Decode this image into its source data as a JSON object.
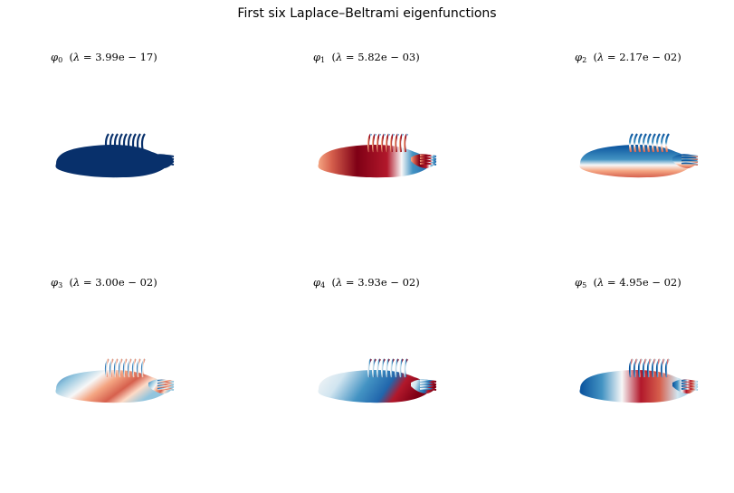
{
  "suptitle": "First six Laplace–Beltrami eigenfunctions",
  "panels": [
    {
      "index": "0",
      "value": "3.99e-17",
      "scheme": "uniform"
    },
    {
      "index": "1",
      "value": "5.82e-03",
      "scheme": "red-blue-lr"
    },
    {
      "index": "2",
      "value": "2.17e-02",
      "scheme": "top-blue-bottom-red"
    },
    {
      "index": "3",
      "value": "3.00e-02",
      "scheme": "mixed-a"
    },
    {
      "index": "4",
      "value": "3.93e-02",
      "scheme": "mixed-b"
    },
    {
      "index": "5",
      "value": "4.95e-02",
      "scheme": "mixed-c"
    }
  ],
  "colors": {
    "dark_blue": "#08306b",
    "dark_red": "#7f0015",
    "mid_blue": "#2166ac",
    "light": "#f7f7f7",
    "mid_red": "#d6604d"
  }
}
